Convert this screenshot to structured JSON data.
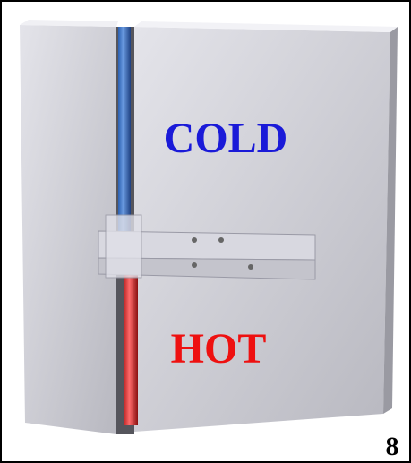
{
  "labels": {
    "cold": "COLD",
    "hot": "HOT",
    "figure_number": "8"
  }
}
